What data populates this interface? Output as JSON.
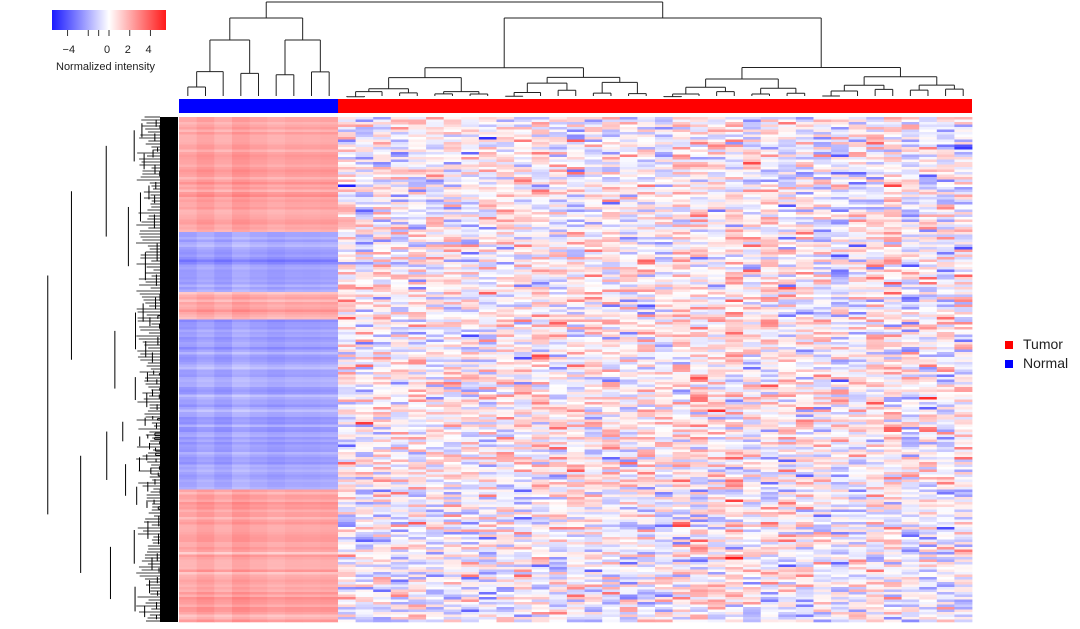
{
  "chart_data": {
    "type": "heatmap",
    "title": "",
    "colorbar": {
      "title": "Normalized intensity",
      "ticks": [
        "−4",
        "0",
        "2",
        "4"
      ],
      "tick_values": [
        -4,
        0,
        2,
        4
      ],
      "range": [
        -5.5,
        5.5
      ],
      "low_color": "#2020ff",
      "mid_color": "#ffffff",
      "high_color": "#ff2020"
    },
    "legend": {
      "placement": "right",
      "items": [
        {
          "label": "Tumor",
          "color": "#ff0000"
        },
        {
          "label": "Normal",
          "color": "#0000ff"
        }
      ]
    },
    "columns": {
      "normal_count": 9,
      "tumor_count": 36
    },
    "row_blocks": [
      {
        "fraction": 0.225,
        "normal_mean": 2.2,
        "tumor_mean": 0.0
      },
      {
        "fraction": 0.12,
        "normal_mean": -2.2,
        "tumor_mean": 0.2
      },
      {
        "fraction": 0.055,
        "normal_mean": 2.0,
        "tumor_mean": 0.1
      },
      {
        "fraction": 0.335,
        "normal_mean": -2.3,
        "tumor_mean": 0.3
      },
      {
        "fraction": 0.265,
        "normal_mean": 2.1,
        "tumor_mean": -0.1
      }
    ],
    "column_dendrogram": true,
    "row_dendrogram": true
  }
}
